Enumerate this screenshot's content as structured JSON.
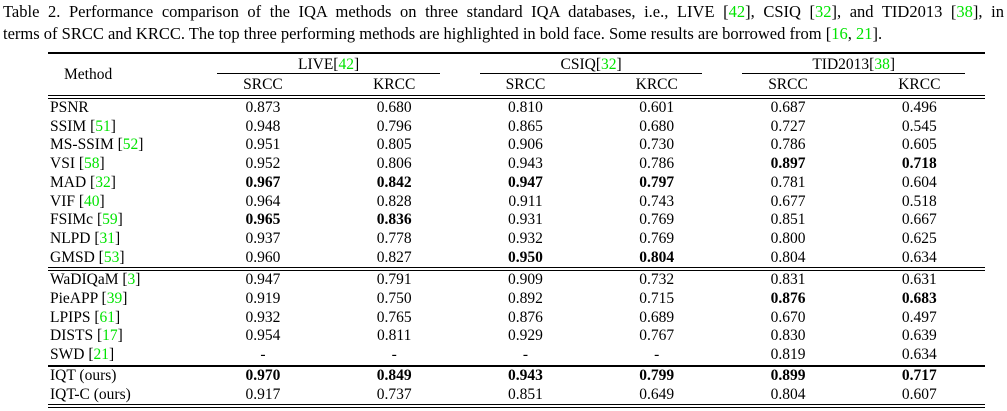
{
  "colors": {
    "citation": "#00e400",
    "text": "#000000",
    "background": "#ffffff"
  },
  "caption": {
    "lines": [
      {
        "segments": [
          {
            "text": "Table 2.  Performance comparison of the IQA methods on three standard IQA databases, i.e., LIVE [",
            "green": false
          },
          {
            "text": "42",
            "green": true
          },
          {
            "text": "], CSIQ [",
            "green": false
          },
          {
            "text": "32",
            "green": true
          },
          {
            "text": "], and TID2013 [",
            "green": false
          },
          {
            "text": "38",
            "green": true
          },
          {
            "text": "], in",
            "green": false
          }
        ]
      },
      {
        "segments": [
          {
            "text": "terms of SRCC and KRCC. The top three performing methods are highlighted in bold face. Some results are borrowed from [",
            "green": false
          },
          {
            "text": "16",
            "green": true
          },
          {
            "text": ", ",
            "green": false
          },
          {
            "text": "21",
            "green": true
          },
          {
            "text": "].",
            "green": false
          }
        ]
      }
    ]
  },
  "table": {
    "method_header": "Method",
    "groups": [
      {
        "name": "LIVE",
        "ref": "42"
      },
      {
        "name": "CSIQ",
        "ref": "32"
      },
      {
        "name": "TID2013",
        "ref": "38"
      }
    ],
    "subheaders": [
      "SRCC",
      "KRCC",
      "SRCC",
      "KRCC",
      "SRCC",
      "KRCC"
    ],
    "sections": [
      {
        "rows": [
          {
            "method": "PSNR",
            "ref": null,
            "values": [
              "0.873",
              "0.680",
              "0.810",
              "0.601",
              "0.687",
              "0.496"
            ],
            "bold": [
              false,
              false,
              false,
              false,
              false,
              false
            ]
          },
          {
            "method": "SSIM",
            "ref": "51",
            "values": [
              "0.948",
              "0.796",
              "0.865",
              "0.680",
              "0.727",
              "0.545"
            ],
            "bold": [
              false,
              false,
              false,
              false,
              false,
              false
            ]
          },
          {
            "method": "MS-SSIM",
            "ref": "52",
            "values": [
              "0.951",
              "0.805",
              "0.906",
              "0.730",
              "0.786",
              "0.605"
            ],
            "bold": [
              false,
              false,
              false,
              false,
              false,
              false
            ]
          },
          {
            "method": "VSI",
            "ref": "58",
            "values": [
              "0.952",
              "0.806",
              "0.943",
              "0.786",
              "0.897",
              "0.718"
            ],
            "bold": [
              false,
              false,
              false,
              false,
              true,
              true
            ]
          },
          {
            "method": "MAD",
            "ref": "32",
            "values": [
              "0.967",
              "0.842",
              "0.947",
              "0.797",
              "0.781",
              "0.604"
            ],
            "bold": [
              true,
              true,
              true,
              true,
              false,
              false
            ]
          },
          {
            "method": "VIF",
            "ref": "40",
            "values": [
              "0.964",
              "0.828",
              "0.911",
              "0.743",
              "0.677",
              "0.518"
            ],
            "bold": [
              false,
              false,
              false,
              false,
              false,
              false
            ]
          },
          {
            "method": "FSIMc",
            "ref": "59",
            "values": [
              "0.965",
              "0.836",
              "0.931",
              "0.769",
              "0.851",
              "0.667"
            ],
            "bold": [
              true,
              true,
              false,
              false,
              false,
              false
            ]
          },
          {
            "method": "NLPD",
            "ref": "31",
            "values": [
              "0.937",
              "0.778",
              "0.932",
              "0.769",
              "0.800",
              "0.625"
            ],
            "bold": [
              false,
              false,
              false,
              false,
              false,
              false
            ]
          },
          {
            "method": "GMSD",
            "ref": "53",
            "values": [
              "0.960",
              "0.827",
              "0.950",
              "0.804",
              "0.804",
              "0.634"
            ],
            "bold": [
              false,
              false,
              true,
              true,
              false,
              false
            ]
          }
        ]
      },
      {
        "rows": [
          {
            "method": "WaDIQaM",
            "ref": "3",
            "values": [
              "0.947",
              "0.791",
              "0.909",
              "0.732",
              "0.831",
              "0.631"
            ],
            "bold": [
              false,
              false,
              false,
              false,
              false,
              false
            ]
          },
          {
            "method": "PieAPP",
            "ref": "39",
            "values": [
              "0.919",
              "0.750",
              "0.892",
              "0.715",
              "0.876",
              "0.683"
            ],
            "bold": [
              false,
              false,
              false,
              false,
              true,
              true
            ]
          },
          {
            "method": "LPIPS",
            "ref": "61",
            "values": [
              "0.932",
              "0.765",
              "0.876",
              "0.689",
              "0.670",
              "0.497"
            ],
            "bold": [
              false,
              false,
              false,
              false,
              false,
              false
            ]
          },
          {
            "method": "DISTS",
            "ref": "17",
            "values": [
              "0.954",
              "0.811",
              "0.929",
              "0.767",
              "0.830",
              "0.639"
            ],
            "bold": [
              false,
              false,
              false,
              false,
              false,
              false
            ]
          },
          {
            "method": "SWD",
            "ref": "21",
            "values": [
              "-",
              "-",
              "-",
              "-",
              "0.819",
              "0.634"
            ],
            "bold": [
              false,
              false,
              false,
              false,
              false,
              false
            ]
          }
        ]
      },
      {
        "rows": [
          {
            "method": "IQT (ours)",
            "ref": null,
            "values": [
              "0.970",
              "0.849",
              "0.943",
              "0.799",
              "0.899",
              "0.717"
            ],
            "bold": [
              true,
              true,
              true,
              true,
              true,
              true
            ]
          },
          {
            "method": "IQT-C (ours)",
            "ref": null,
            "values": [
              "0.917",
              "0.737",
              "0.851",
              "0.649",
              "0.804",
              "0.607"
            ],
            "bold": [
              false,
              false,
              false,
              false,
              false,
              false
            ]
          }
        ]
      }
    ]
  }
}
